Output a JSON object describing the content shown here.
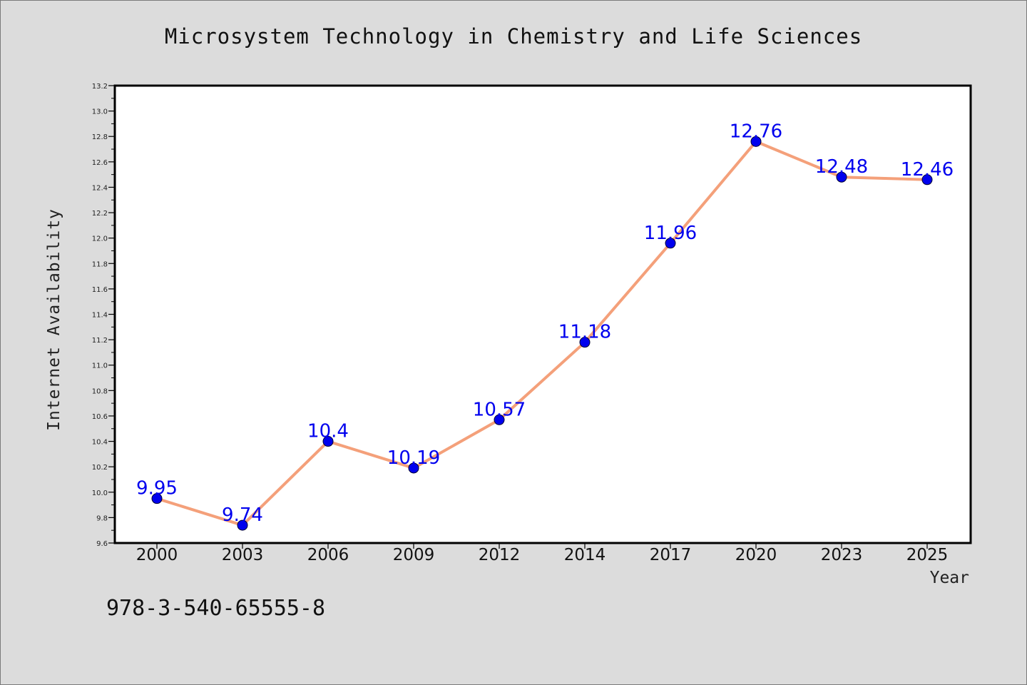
{
  "title": "Microsystem Technology in Chemistry and Life Sciences",
  "isbn": "978-3-540-65555-8",
  "colors": {
    "background": "#dcdcdc",
    "plot_bg": "#ffffff",
    "line": "#f4a07a",
    "marker": "#0000ee",
    "label": "#0000ee"
  },
  "chart_data": {
    "type": "line",
    "title": "Microsystem Technology in Chemistry and Life Sciences",
    "xlabel": "Year",
    "ylabel": "Internet Availability",
    "categories": [
      "2000",
      "2003",
      "2006",
      "2009",
      "2012",
      "2014",
      "2017",
      "2020",
      "2023",
      "2025"
    ],
    "series": [
      {
        "values": [
          9.95,
          9.74,
          10.4,
          10.19,
          10.57,
          11.18,
          11.96,
          12.76,
          12.48,
          12.46
        ]
      }
    ],
    "data_labels": [
      "9.95",
      "9.74",
      "10.4",
      "10.19",
      "10.57",
      "11.18",
      "11.96",
      "12.76",
      "12.48",
      "12.46"
    ],
    "ylim": [
      9.6,
      13.2
    ],
    "yticks": [
      "9.6",
      "9.8",
      "10.0",
      "10.2",
      "10.4",
      "10.6",
      "10.8",
      "11.0",
      "11.2",
      "11.4",
      "11.6",
      "11.8",
      "12.0",
      "12.2",
      "12.4",
      "12.6",
      "12.8",
      "13.0",
      "13.2"
    ],
    "grid": false,
    "legend": "none"
  }
}
